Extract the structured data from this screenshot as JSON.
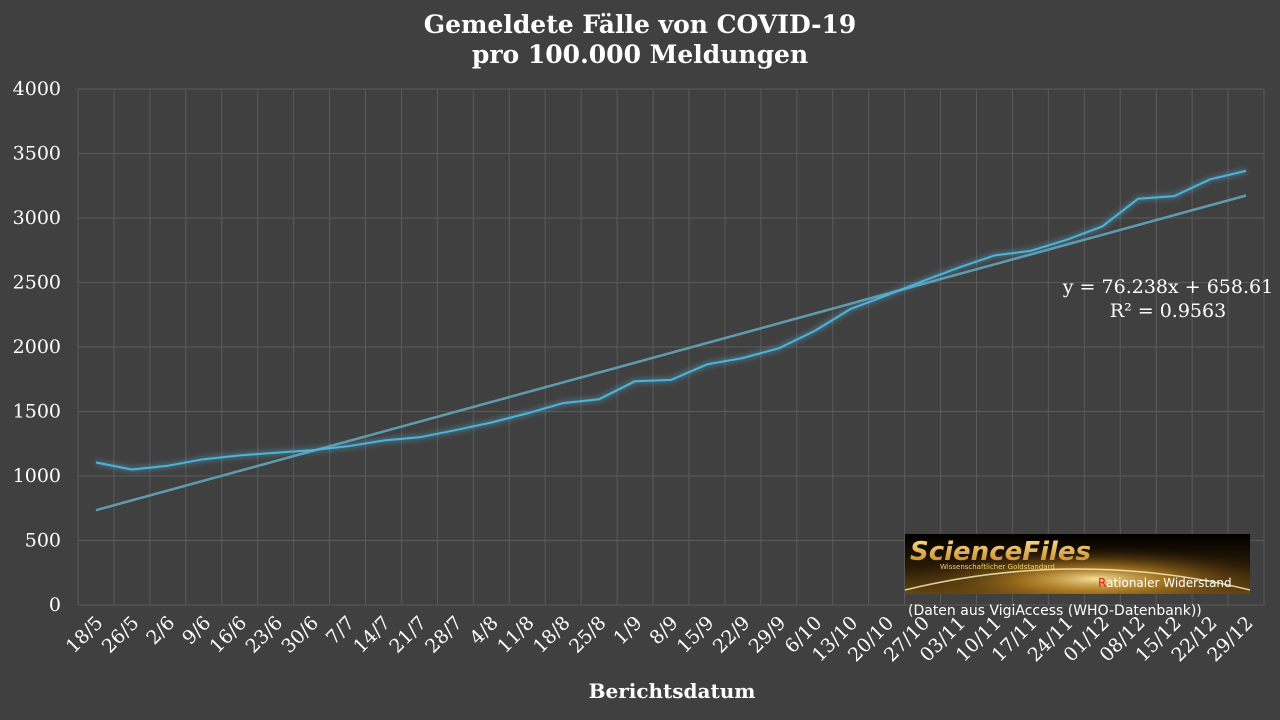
{
  "chart_data": {
    "type": "line",
    "title_line1": "Gemeldete Fälle von COVID-19",
    "title_line2": "pro 100.000 Meldungen",
    "xlabel": "Berichtsdatum",
    "ylabel": "",
    "ylim": [
      0,
      4000
    ],
    "y_ticks": [
      0,
      500,
      1000,
      1500,
      2000,
      2500,
      3000,
      3500,
      4000
    ],
    "grid": true,
    "categories": [
      "18/5",
      "26/5",
      "2/6",
      "9/6",
      "16/6",
      "23/6",
      "30/6",
      "7/7",
      "14/7",
      "21/7",
      "28/7",
      "4/8",
      "11/8",
      "18/8",
      "25/8",
      "1/9",
      "8/9",
      "15/9",
      "22/9",
      "29/9",
      "6/10",
      "13/10",
      "20/10",
      "27/10",
      "03/11",
      "10/11",
      "17/11",
      "24/11",
      "01/12",
      "08/12",
      "15/12",
      "22/12",
      "29/12"
    ],
    "series": [
      {
        "values": [
          1105,
          1050,
          1080,
          1130,
          1160,
          1180,
          1200,
          1230,
          1275,
          1300,
          1355,
          1415,
          1485,
          1565,
          1595,
          1735,
          1745,
          1865,
          1915,
          1990,
          2125,
          2295,
          2400,
          2510,
          2615,
          2710,
          2745,
          2830,
          2935,
          3150,
          3170,
          3300,
          3365
        ]
      }
    ],
    "trendline": {
      "type": "linear",
      "slope": 76.238,
      "intercept": 658.61,
      "equation": "y = 76.238x + 658.61",
      "r_squared": "R² = 0.9563"
    },
    "colors": {
      "background": "#404040",
      "grid": "#5a5a5a",
      "series": "#4fb3d9",
      "trendline": "#5f9bad"
    }
  },
  "source_note": "(Daten aus VigiAccess (WHO-Datenbank))",
  "logo": {
    "name": "ScienceFiles",
    "subtitle": "Wissenschaftlicher Goldstandard",
    "tagline_first": "R",
    "tagline_rest": "ationaler Widerstand"
  }
}
